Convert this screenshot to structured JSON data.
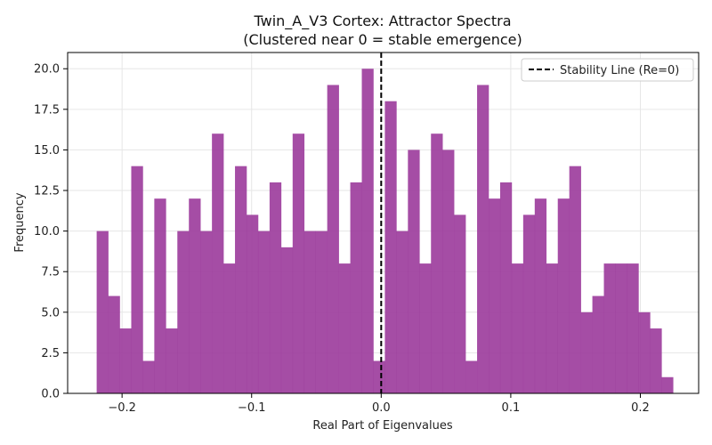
{
  "chart_data": {
    "type": "histogram",
    "title": "Twin_A_V3 Cortex: Attractor Spectra",
    "subtitle": "(Clustered near 0 = stable emergence)",
    "xlabel": "Real Part of Eigenvalues",
    "ylabel": "Frequency",
    "xlim": [
      -0.242,
      0.245
    ],
    "ylim": [
      0,
      21
    ],
    "grid": true,
    "bar_color": "#9b3a9b",
    "bin_start": -0.2196,
    "bin_width": 0.008897,
    "counts": [
      10,
      6,
      4,
      14,
      2,
      12,
      4,
      10,
      12,
      10,
      16,
      8,
      14,
      11,
      10,
      13,
      9,
      16,
      10,
      10,
      19,
      8,
      13,
      20,
      2,
      18,
      10,
      15,
      8,
      16,
      15,
      11,
      2,
      19,
      12,
      13,
      8,
      11,
      12,
      8,
      12,
      14,
      5,
      6,
      8,
      8,
      8,
      5,
      4,
      1
    ],
    "x_ticks": [
      -0.2,
      -0.1,
      0.0,
      0.1,
      0.2
    ],
    "x_tick_labels": [
      "−0.2",
      "−0.1",
      "0.0",
      "0.1",
      "0.2"
    ],
    "y_ticks": [
      0,
      2.5,
      5,
      7.5,
      10,
      12.5,
      15,
      17.5,
      20
    ],
    "y_tick_labels": [
      "0.0",
      "2.5",
      "5.0",
      "7.5",
      "10.0",
      "12.5",
      "15.0",
      "17.5",
      "20.0"
    ],
    "reference_line": {
      "x": 0,
      "style": "dashed",
      "color": "#000000",
      "label": "Stability Line (Re=0)"
    },
    "legend": {
      "position": "top-right",
      "entries": [
        "Stability Line (Re=0)"
      ]
    }
  }
}
